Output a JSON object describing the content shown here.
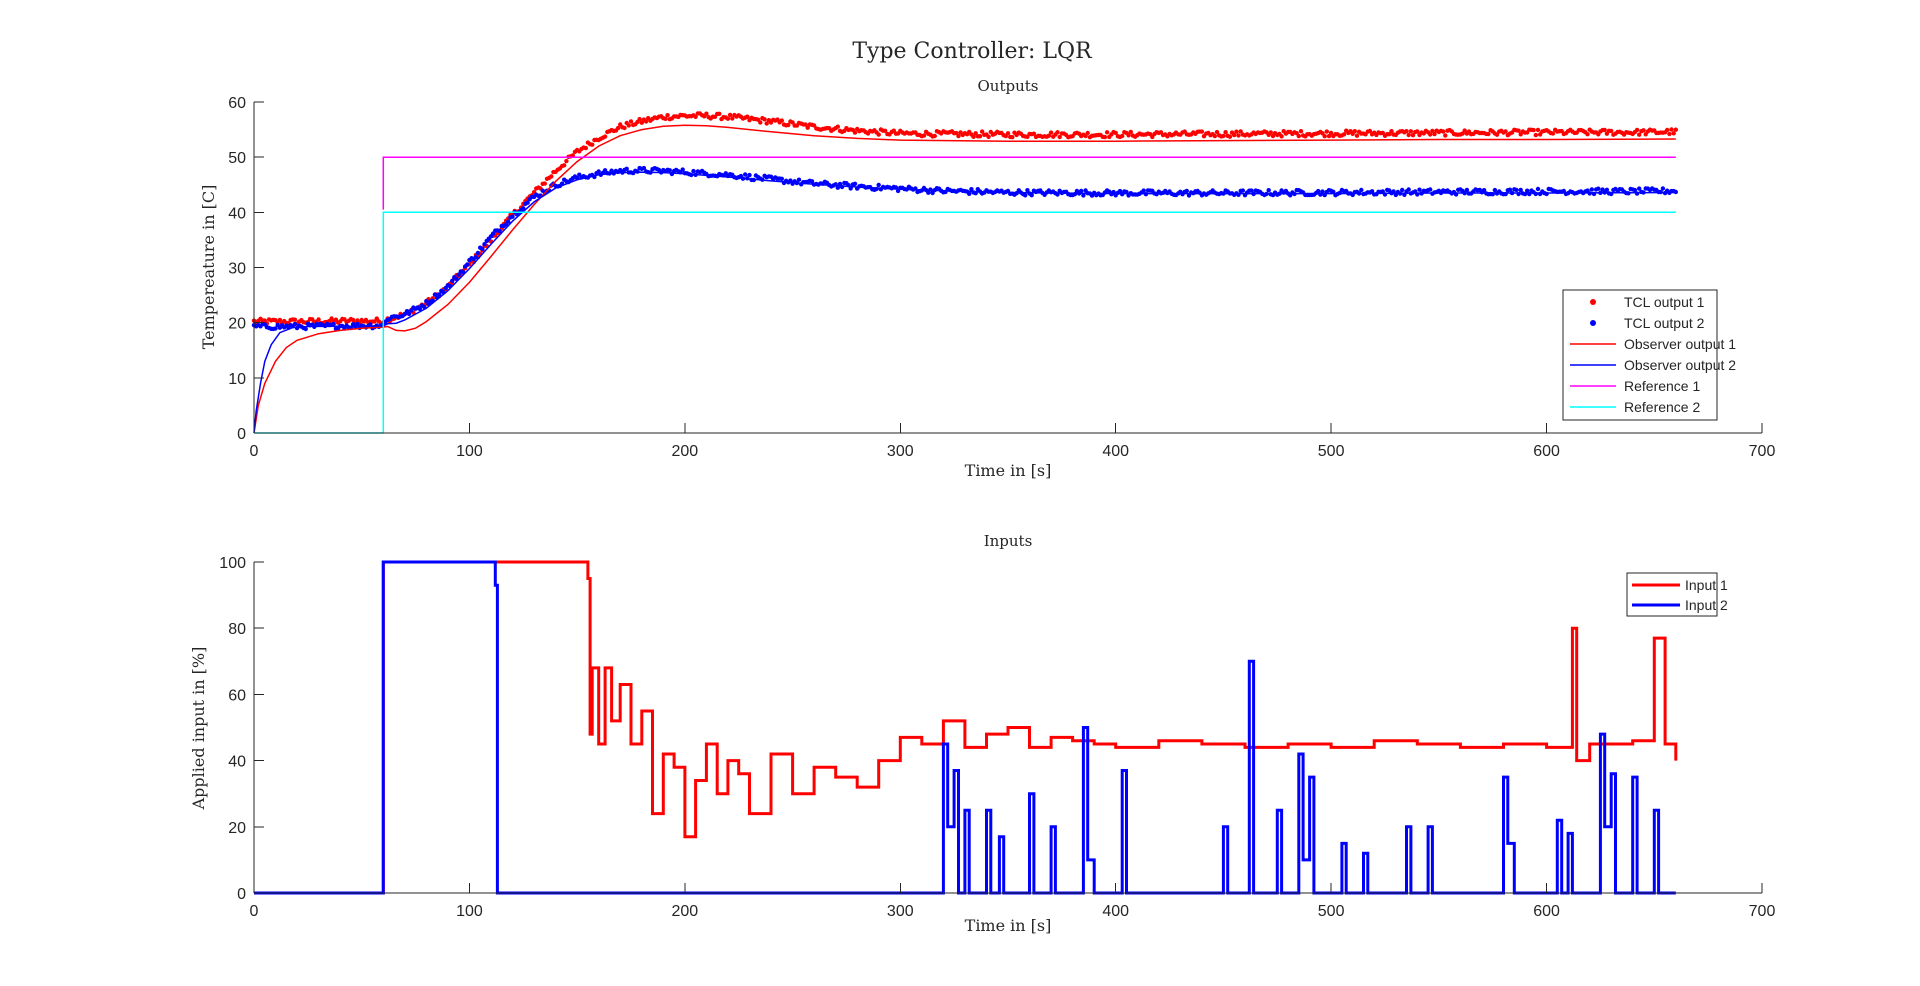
{
  "figure": {
    "title": "Type Controller: LQR"
  },
  "chart_data": [
    {
      "type": "line",
      "title": "Outputs",
      "xlabel": "Time in [s]",
      "ylabel": "Tempereature in [C]",
      "xlim": [
        0,
        700
      ],
      "ylim": [
        0,
        60
      ],
      "xticks": [
        "0",
        "100",
        "200",
        "300",
        "400",
        "500",
        "600",
        "700"
      ],
      "yticks": [
        "0",
        "10",
        "20",
        "30",
        "40",
        "50",
        "60"
      ],
      "grid": false,
      "legend_position": "inside-lower-right",
      "series": [
        {
          "name": "TCL output 1",
          "color": "#ff0000",
          "style": "markers",
          "points": [
            [
              0,
              20.2
            ],
            [
              20,
              20.2
            ],
            [
              40,
              20.3
            ],
            [
              60,
              20.3
            ],
            [
              62,
              20.6
            ],
            [
              70,
              21.5
            ],
            [
              80,
              23.5
            ],
            [
              90,
              26.5
            ],
            [
              100,
              30.5
            ],
            [
              110,
              35
            ],
            [
              120,
              39.5
            ],
            [
              130,
              43.5
            ],
            [
              140,
              47.5
            ],
            [
              150,
              51
            ],
            [
              160,
              53.5
            ],
            [
              170,
              55.5
            ],
            [
              180,
              56.5
            ],
            [
              190,
              57.3
            ],
            [
              200,
              57.5
            ],
            [
              210,
              57.5
            ],
            [
              220,
              57.3
            ],
            [
              240,
              56.5
            ],
            [
              260,
              55.5
            ],
            [
              280,
              54.8
            ],
            [
              300,
              54.3
            ],
            [
              350,
              54.1
            ],
            [
              400,
              54.1
            ],
            [
              450,
              54.2
            ],
            [
              500,
              54.3
            ],
            [
              550,
              54.4
            ],
            [
              600,
              54.5
            ],
            [
              640,
              54.5
            ],
            [
              660,
              54.6
            ]
          ]
        },
        {
          "name": "TCL output 2",
          "color": "#0000ff",
          "style": "markers",
          "points": [
            [
              0,
              19.3
            ],
            [
              20,
              19.3
            ],
            [
              40,
              19.4
            ],
            [
              60,
              19.5
            ],
            [
              62,
              20.8
            ],
            [
              70,
              21.5
            ],
            [
              80,
              23.5
            ],
            [
              90,
              26.5
            ],
            [
              100,
              31
            ],
            [
              110,
              35.5
            ],
            [
              120,
              39.5
            ],
            [
              130,
              42.8
            ],
            [
              140,
              45
            ],
            [
              150,
              46.3
            ],
            [
              160,
              47
            ],
            [
              170,
              47.5
            ],
            [
              180,
              47.6
            ],
            [
              190,
              47.5
            ],
            [
              200,
              47.3
            ],
            [
              220,
              46.8
            ],
            [
              240,
              46
            ],
            [
              260,
              45.2
            ],
            [
              280,
              44.7
            ],
            [
              300,
              44.3
            ],
            [
              320,
              43.9
            ],
            [
              350,
              43.6
            ],
            [
              400,
              43.5
            ],
            [
              450,
              43.5
            ],
            [
              500,
              43.6
            ],
            [
              550,
              43.7
            ],
            [
              600,
              43.8
            ],
            [
              640,
              43.8
            ],
            [
              660,
              43.9
            ]
          ]
        },
        {
          "name": "Observer output 1",
          "color": "#ff0000",
          "style": "line",
          "points": [
            [
              0,
              0
            ],
            [
              2,
              5
            ],
            [
              5,
              9
            ],
            [
              10,
              13
            ],
            [
              15,
              15.5
            ],
            [
              20,
              16.8
            ],
            [
              30,
              18
            ],
            [
              40,
              18.6
            ],
            [
              50,
              19
            ],
            [
              60,
              19.2
            ],
            [
              62,
              19.3
            ],
            [
              66,
              18.6
            ],
            [
              70,
              18.5
            ],
            [
              75,
              19
            ],
            [
              80,
              20.2
            ],
            [
              90,
              23.3
            ],
            [
              100,
              27.3
            ],
            [
              110,
              32
            ],
            [
              120,
              36.8
            ],
            [
              130,
              41.4
            ],
            [
              140,
              45.6
            ],
            [
              150,
              49.2
            ],
            [
              160,
              52
            ],
            [
              170,
              53.9
            ],
            [
              180,
              55
            ],
            [
              190,
              55.6
            ],
            [
              200,
              55.8
            ],
            [
              210,
              55.7
            ],
            [
              220,
              55.4
            ],
            [
              240,
              54.6
            ],
            [
              260,
              53.9
            ],
            [
              280,
              53.4
            ],
            [
              300,
              53.1
            ],
            [
              350,
              52.9
            ],
            [
              400,
              52.9
            ],
            [
              450,
              53
            ],
            [
              500,
              53.1
            ],
            [
              550,
              53.2
            ],
            [
              600,
              53.2
            ],
            [
              660,
              53.3
            ]
          ]
        },
        {
          "name": "Observer output 2",
          "color": "#0000ff",
          "style": "line",
          "points": [
            [
              0,
              0
            ],
            [
              1,
              4
            ],
            [
              3,
              9
            ],
            [
              5,
              13
            ],
            [
              8,
              16
            ],
            [
              12,
              18.2
            ],
            [
              18,
              19.1
            ],
            [
              25,
              19.3
            ],
            [
              60,
              19.4
            ],
            [
              62,
              19.8
            ],
            [
              66,
              19.9
            ],
            [
              70,
              20.5
            ],
            [
              80,
              22.6
            ],
            [
              90,
              25.8
            ],
            [
              100,
              29.8
            ],
            [
              110,
              34.2
            ],
            [
              120,
              38.4
            ],
            [
              130,
              41.9
            ],
            [
              140,
              44.4
            ],
            [
              150,
              45.9
            ],
            [
              160,
              46.8
            ],
            [
              170,
              47.2
            ],
            [
              180,
              47.3
            ],
            [
              190,
              47.2
            ],
            [
              200,
              47
            ],
            [
              220,
              46.4
            ],
            [
              240,
              45.7
            ],
            [
              260,
              45.1
            ],
            [
              280,
              44.6
            ],
            [
              300,
              44.2
            ],
            [
              320,
              43.9
            ],
            [
              350,
              43.6
            ],
            [
              400,
              43.4
            ],
            [
              450,
              43.4
            ],
            [
              500,
              43.4
            ],
            [
              550,
              43.5
            ],
            [
              600,
              43.5
            ],
            [
              660,
              43.6
            ]
          ]
        },
        {
          "name": "Reference 1",
          "color": "#ff00ff",
          "style": "line",
          "points": [
            [
              60,
              40.5
            ],
            [
              60,
              50
            ],
            [
              660,
              50
            ]
          ]
        },
        {
          "name": "Reference 2",
          "color": "#00ffff",
          "style": "line",
          "points": [
            [
              0,
              0
            ],
            [
              60,
              0
            ],
            [
              60,
              40
            ],
            [
              660,
              40
            ]
          ]
        }
      ]
    },
    {
      "type": "line",
      "title": "Inputs",
      "xlabel": "Time in [s]",
      "ylabel": "Applied input in [%]",
      "xlim": [
        0,
        700
      ],
      "ylim": [
        0,
        100
      ],
      "xticks": [
        "0",
        "100",
        "200",
        "300",
        "400",
        "500",
        "600",
        "700"
      ],
      "yticks": [
        "0",
        "20",
        "40",
        "60",
        "80",
        "100"
      ],
      "grid": false,
      "legend_position": "top-right",
      "series": [
        {
          "name": "Input 1",
          "color": "#ff0000",
          "style": "stairs",
          "points": [
            [
              0,
              0
            ],
            [
              60,
              100
            ],
            [
              155,
              95
            ],
            [
              156,
              48
            ],
            [
              157,
              68
            ],
            [
              160,
              45
            ],
            [
              163,
              68
            ],
            [
              166,
              52
            ],
            [
              170,
              63
            ],
            [
              175,
              45
            ],
            [
              180,
              55
            ],
            [
              185,
              24
            ],
            [
              190,
              42
            ],
            [
              195,
              38
            ],
            [
              200,
              17
            ],
            [
              205,
              34
            ],
            [
              210,
              45
            ],
            [
              215,
              30
            ],
            [
              220,
              40
            ],
            [
              225,
              36
            ],
            [
              230,
              24
            ],
            [
              240,
              42
            ],
            [
              250,
              30
            ],
            [
              260,
              38
            ],
            [
              270,
              35
            ],
            [
              280,
              32
            ],
            [
              290,
              40
            ],
            [
              300,
              47
            ],
            [
              310,
              45
            ],
            [
              320,
              52
            ],
            [
              330,
              44
            ],
            [
              340,
              48
            ],
            [
              350,
              50
            ],
            [
              360,
              44
            ],
            [
              370,
              47
            ],
            [
              380,
              46
            ],
            [
              390,
              45
            ],
            [
              400,
              44
            ],
            [
              420,
              46
            ],
            [
              440,
              45
            ],
            [
              460,
              44
            ],
            [
              480,
              45
            ],
            [
              500,
              44
            ],
            [
              520,
              46
            ],
            [
              540,
              45
            ],
            [
              560,
              44
            ],
            [
              580,
              45
            ],
            [
              600,
              44
            ],
            [
              612,
              80
            ],
            [
              614,
              40
            ],
            [
              620,
              45
            ],
            [
              640,
              46
            ],
            [
              650,
              77
            ],
            [
              655,
              45
            ],
            [
              660,
              40
            ]
          ]
        },
        {
          "name": "Input 2",
          "color": "#0000ff",
          "style": "stairs",
          "points": [
            [
              0,
              0
            ],
            [
              60,
              100
            ],
            [
              112,
              93
            ],
            [
              113,
              0
            ],
            [
              318,
              0
            ],
            [
              320,
              45
            ],
            [
              322,
              20
            ],
            [
              325,
              37
            ],
            [
              327,
              0
            ],
            [
              330,
              25
            ],
            [
              332,
              0
            ],
            [
              340,
              25
            ],
            [
              342,
              0
            ],
            [
              346,
              17
            ],
            [
              348,
              0
            ],
            [
              360,
              30
            ],
            [
              362,
              0
            ],
            [
              370,
              20
            ],
            [
              372,
              0
            ],
            [
              385,
              50
            ],
            [
              387,
              10
            ],
            [
              390,
              0
            ],
            [
              403,
              37
            ],
            [
              405,
              0
            ],
            [
              450,
              20
            ],
            [
              452,
              0
            ],
            [
              462,
              70
            ],
            [
              464,
              0
            ],
            [
              475,
              25
            ],
            [
              477,
              0
            ],
            [
              485,
              42
            ],
            [
              487,
              10
            ],
            [
              490,
              35
            ],
            [
              492,
              0
            ],
            [
              505,
              15
            ],
            [
              507,
              0
            ],
            [
              515,
              12
            ],
            [
              517,
              0
            ],
            [
              535,
              20
            ],
            [
              537,
              0
            ],
            [
              545,
              20
            ],
            [
              547,
              0
            ],
            [
              580,
              35
            ],
            [
              582,
              15
            ],
            [
              585,
              0
            ],
            [
              605,
              22
            ],
            [
              607,
              0
            ],
            [
              610,
              18
            ],
            [
              612,
              0
            ],
            [
              625,
              48
            ],
            [
              627,
              20
            ],
            [
              630,
              36
            ],
            [
              632,
              0
            ],
            [
              640,
              35
            ],
            [
              642,
              0
            ],
            [
              650,
              25
            ],
            [
              652,
              0
            ],
            [
              660,
              0
            ]
          ]
        }
      ]
    }
  ]
}
